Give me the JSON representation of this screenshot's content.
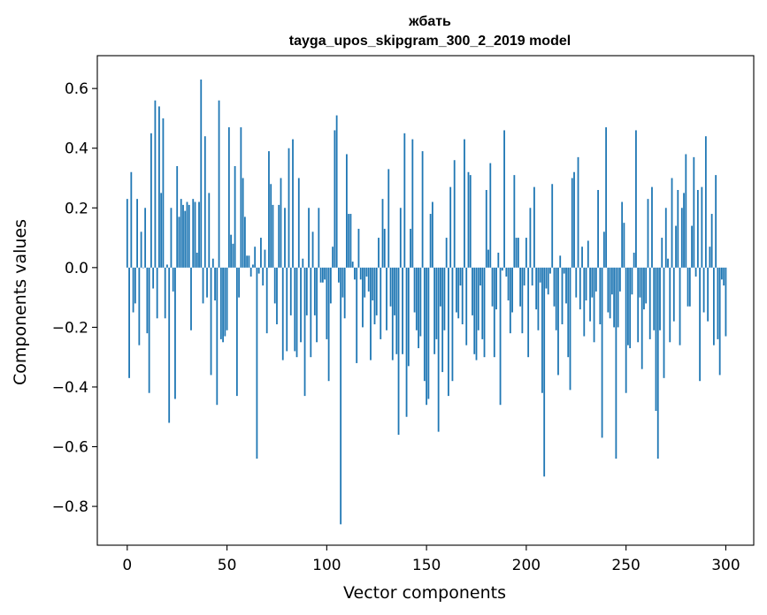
{
  "chart_data": {
    "type": "bar",
    "title": "жбать",
    "subtitle": "tayga_upos_skipgram_300_2_2019 model",
    "xlabel": "Vector components",
    "ylabel": "Components values",
    "xlim": [
      -15,
      314
    ],
    "ylim": [
      -0.93,
      0.71
    ],
    "xticks": [
      0,
      50,
      100,
      150,
      200,
      250,
      300
    ],
    "xtick_labels": [
      "0",
      "50",
      "100",
      "150",
      "200",
      "250",
      "300"
    ],
    "yticks": [
      -0.8,
      -0.6,
      -0.4,
      -0.2,
      0.0,
      0.2,
      0.4,
      0.6
    ],
    "ytick_labels": [
      "−0.8",
      "−0.6",
      "−0.4",
      "−0.2",
      "0.0",
      "0.2",
      "0.4",
      "0.6"
    ],
    "color": "#1f77b4",
    "values": [
      0.23,
      -0.37,
      0.32,
      -0.15,
      -0.12,
      0.23,
      -0.26,
      0.12,
      0.0,
      0.2,
      -0.22,
      -0.42,
      0.45,
      -0.07,
      0.56,
      -0.17,
      0.54,
      0.25,
      0.5,
      -0.17,
      0.01,
      -0.52,
      0.2,
      -0.08,
      -0.44,
      0.34,
      0.17,
      0.23,
      0.21,
      0.19,
      0.22,
      0.21,
      -0.21,
      0.23,
      0.22,
      0.05,
      0.22,
      0.63,
      -0.12,
      0.44,
      -0.1,
      0.25,
      -0.36,
      0.03,
      -0.11,
      -0.46,
      0.56,
      -0.24,
      -0.25,
      -0.23,
      -0.21,
      0.47,
      0.11,
      0.08,
      0.34,
      -0.43,
      -0.1,
      0.47,
      0.3,
      0.17,
      0.04,
      0.04,
      -0.03,
      0.01,
      0.07,
      -0.64,
      -0.02,
      0.1,
      -0.06,
      0.06,
      -0.22,
      0.39,
      0.28,
      0.21,
      -0.12,
      -0.19,
      0.21,
      0.3,
      -0.31,
      0.2,
      -0.28,
      0.4,
      -0.16,
      0.43,
      -0.28,
      -0.3,
      0.3,
      -0.25,
      0.03,
      -0.43,
      -0.16,
      0.2,
      -0.3,
      0.12,
      -0.16,
      -0.25,
      0.2,
      -0.05,
      -0.05,
      -0.04,
      -0.24,
      -0.38,
      -0.12,
      0.07,
      0.46,
      0.51,
      -0.05,
      -0.86,
      -0.1,
      -0.17,
      0.38,
      0.18,
      0.18,
      0.02,
      -0.04,
      -0.32,
      0.13,
      -0.04,
      -0.2,
      -0.1,
      -0.03,
      -0.08,
      -0.31,
      -0.11,
      -0.19,
      -0.16,
      0.1,
      -0.24,
      0.23,
      0.13,
      -0.21,
      0.33,
      -0.13,
      -0.31,
      -0.16,
      -0.29,
      -0.56,
      0.2,
      -0.29,
      0.45,
      -0.5,
      -0.33,
      0.13,
      0.43,
      -0.15,
      -0.21,
      -0.27,
      -0.23,
      0.39,
      -0.38,
      -0.46,
      -0.44,
      0.18,
      0.22,
      -0.29,
      -0.24,
      -0.55,
      -0.13,
      -0.35,
      -0.21,
      0.1,
      -0.43,
      0.27,
      -0.38,
      0.36,
      -0.15,
      -0.17,
      -0.06,
      -0.19,
      0.43,
      -0.26,
      0.32,
      0.31,
      -0.16,
      -0.29,
      -0.31,
      -0.21,
      -0.06,
      -0.24,
      -0.3,
      0.26,
      0.06,
      0.35,
      -0.13,
      -0.3,
      -0.14,
      0.05,
      -0.46,
      -0.01,
      0.46,
      -0.03,
      -0.11,
      -0.22,
      -0.15,
      0.31,
      0.1,
      0.1,
      -0.13,
      -0.22,
      -0.06,
      0.1,
      -0.3,
      0.2,
      -0.06,
      0.27,
      -0.14,
      -0.21,
      -0.05,
      -0.42,
      -0.7,
      -0.07,
      -0.09,
      -0.02,
      0.28,
      -0.13,
      -0.21,
      -0.36,
      0.04,
      -0.19,
      -0.02,
      -0.12,
      -0.3,
      -0.41,
      0.3,
      0.32,
      -0.1,
      0.37,
      -0.14,
      0.07,
      -0.23,
      -0.11,
      0.09,
      -0.18,
      -0.1,
      -0.25,
      -0.08,
      0.26,
      -0.19,
      -0.57,
      0.12,
      0.47,
      -0.15,
      -0.17,
      -0.09,
      -0.2,
      -0.64,
      -0.2,
      -0.08,
      0.22,
      0.15,
      -0.42,
      -0.26,
      -0.27,
      -0.09,
      0.05,
      0.46,
      -0.25,
      -0.1,
      -0.34,
      -0.14,
      -0.12,
      0.23,
      -0.24,
      0.27,
      -0.21,
      -0.48,
      -0.64,
      -0.21,
      0.1,
      -0.37,
      0.2,
      0.03,
      -0.25,
      0.3,
      -0.18,
      0.14,
      0.26,
      -0.26,
      0.2,
      0.25,
      0.38,
      -0.13,
      -0.13,
      0.14,
      0.37,
      -0.03,
      0.26,
      -0.38,
      0.27,
      -0.15,
      0.44,
      -0.18,
      0.07,
      0.18,
      -0.26,
      0.31,
      -0.24,
      -0.36,
      -0.04,
      -0.06,
      -0.23
    ]
  }
}
